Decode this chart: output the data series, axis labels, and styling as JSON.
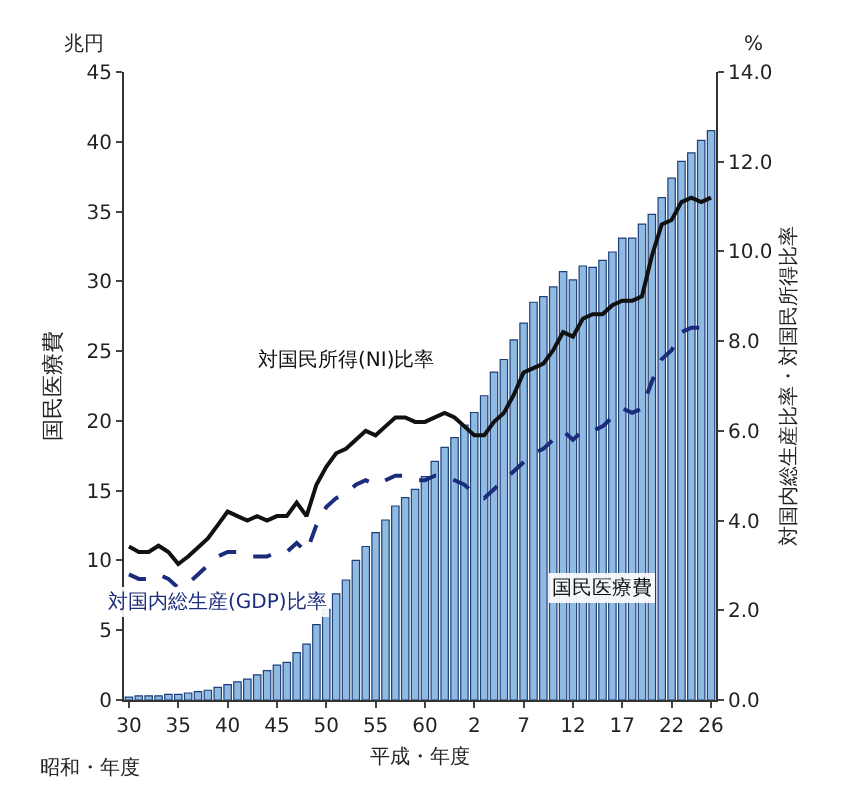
{
  "chart_data": {
    "type": "bar",
    "ylabel": "国民医療費",
    "y2label": "対国内総生産比率・対国民所得比率",
    "xlabel": "平成・年度",
    "annotations": [
      "兆円",
      "%",
      "昭和・年度"
    ],
    "categories": [
      "30",
      null,
      null,
      null,
      null,
      "35",
      null,
      null,
      null,
      null,
      "40",
      null,
      null,
      null,
      null,
      "45",
      null,
      null,
      null,
      null,
      "50",
      null,
      null,
      null,
      null,
      "55",
      null,
      null,
      null,
      null,
      "60",
      null,
      null,
      null,
      null,
      "2",
      null,
      null,
      null,
      null,
      "7",
      null,
      null,
      null,
      null,
      "12",
      null,
      null,
      null,
      null,
      "17",
      null,
      null,
      null,
      null,
      "22",
      null,
      null,
      null,
      "26"
    ],
    "series": [
      {
        "name": "国民医療費",
        "color": "#8fbbe3",
        "values": [
          0.2,
          0.3,
          0.3,
          0.3,
          0.4,
          0.4,
          0.5,
          0.6,
          0.7,
          0.9,
          1.1,
          1.3,
          1.5,
          1.8,
          2.1,
          2.5,
          2.7,
          3.4,
          4.0,
          5.4,
          6.5,
          7.6,
          8.6,
          10.0,
          11.0,
          12.0,
          12.9,
          13.9,
          14.5,
          15.1,
          16.0,
          17.1,
          18.1,
          18.8,
          19.7,
          20.6,
          21.8,
          23.5,
          24.4,
          25.8,
          27.0,
          28.5,
          28.9,
          29.6,
          30.7,
          30.1,
          31.1,
          31.0,
          31.5,
          32.1,
          33.1,
          33.1,
          34.1,
          34.8,
          36.0,
          37.4,
          38.6,
          39.2,
          40.1,
          40.8
        ]
      },
      {
        "name": "対国民所得(NI)比率",
        "type": "line",
        "axis": "y2",
        "color": "#111111",
        "line_style": "solid",
        "values": [
          3.42,
          3.3,
          3.3,
          3.44,
          3.3,
          3.03,
          3.2,
          3.4,
          3.6,
          3.9,
          4.2,
          4.1,
          4.0,
          4.1,
          4.0,
          4.1,
          4.1,
          4.4,
          4.1,
          4.8,
          5.2,
          5.5,
          5.6,
          5.8,
          6.0,
          5.9,
          6.1,
          6.3,
          6.3,
          6.2,
          6.2,
          6.3,
          6.4,
          6.3,
          6.1,
          5.9,
          5.9,
          6.2,
          6.4,
          6.8,
          7.3,
          7.4,
          7.5,
          7.8,
          8.2,
          8.1,
          8.5,
          8.6,
          8.6,
          8.8,
          8.9,
          8.9,
          9.0,
          9.9,
          10.6,
          10.7,
          11.1,
          11.2,
          11.1,
          11.2
        ]
      },
      {
        "name": "対国内総生産(GDP)比率",
        "type": "line",
        "axis": "y2",
        "color": "#1c2c7c",
        "line_style": "dashed",
        "values": [
          2.8,
          2.7,
          2.7,
          2.8,
          2.7,
          2.5,
          2.6,
          2.8,
          3.0,
          3.2,
          3.3,
          3.3,
          3.2,
          3.2,
          3.2,
          3.3,
          3.3,
          3.5,
          3.3,
          3.9,
          4.3,
          4.5,
          4.6,
          4.8,
          4.9,
          4.8,
          4.9,
          5.0,
          5.0,
          4.9,
          4.9,
          5.0,
          5.0,
          4.9,
          4.8,
          4.6,
          4.5,
          4.7,
          4.9,
          5.1,
          5.3,
          5.5,
          5.6,
          5.8,
          6.0,
          5.8,
          6.0,
          6.0,
          6.1,
          6.3,
          6.5,
          6.4,
          6.5,
          7.1,
          7.6,
          7.8,
          8.2,
          8.3,
          8.3,
          8.3
        ]
      }
    ],
    "ylim": [
      0,
      45
    ],
    "yticks": [
      0,
      5,
      10,
      15,
      20,
      25,
      30,
      35,
      40,
      45
    ],
    "y2lim": [
      0,
      14
    ],
    "y2ticks": [
      {
        "value": 0,
        "label": "0.0"
      },
      {
        "value": 2,
        "label": "2.0"
      },
      {
        "value": 4,
        "label": "4.0"
      },
      {
        "value": 6,
        "label": "6.0"
      },
      {
        "value": 8,
        "label": "8.0"
      },
      {
        "value": 10,
        "label": "10.0"
      },
      {
        "value": 12,
        "label": "12.0"
      },
      {
        "value": 14,
        "label": "14.0"
      }
    ],
    "grid": false,
    "legend": false,
    "marker": "none"
  }
}
